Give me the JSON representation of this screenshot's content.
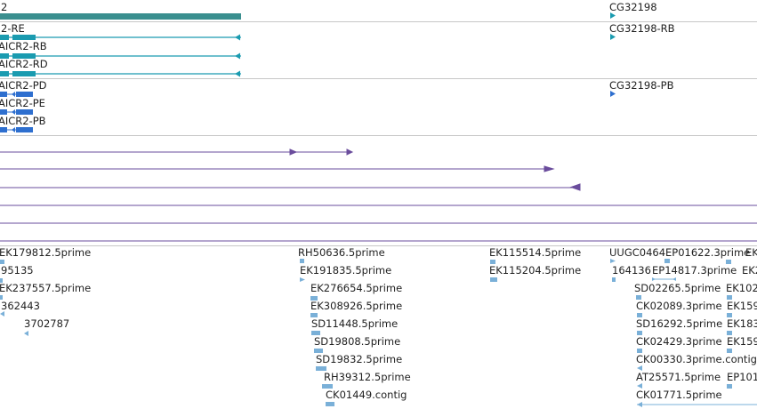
{
  "colors": {
    "gene": "#3a8f8f",
    "transcript": "#1a9bb0",
    "protein": "#2e6fcf",
    "alignment": "#6a4c9c",
    "est": "#7ab0d8",
    "separator": "#c7c7c7"
  },
  "gene_track": {
    "left_gene_label": "2",
    "right_gene_label": "CG32198"
  },
  "transcript_track": {
    "labels": [
      "2-RE",
      "AICR2-RB",
      "AICR2-RD"
    ],
    "right_label": "CG32198-RB"
  },
  "protein_track": {
    "labels": [
      "AICR2-PD",
      "AICR2-PE",
      "AICR2-PB"
    ],
    "right_label": "CG32198-PB"
  },
  "est_track": {
    "col1": [
      "EK179812.5prime",
      "95135",
      "EK237557.5prime",
      "362443",
      "3702787"
    ],
    "col2": [
      "RH50636.5prime",
      "EK191835.5prime",
      "EK276654.5prime",
      "EK308926.5prime",
      "SD11448.5prime",
      "SD19808.5prime",
      "SD19832.5prime",
      "RH39312.5prime",
      "CK01449.contig"
    ],
    "col3": [
      "EK115514.5prime",
      "EK115204.5prime"
    ],
    "col4_row0": [
      "UUGC0464",
      "EP01622.3prime",
      "EK"
    ],
    "col4_row1": [
      "164136",
      "EP14817.3prime",
      "EK2"
    ],
    "col4": [
      "SD02265.5prime",
      "CK02089.3prime",
      "SD16292.5prime",
      "CK02429.3prime",
      "CK00330.3prime.contig",
      "AT25571.5prime",
      "CK01771.5prime"
    ],
    "col5": [
      "EK102",
      "EK159",
      "EK183",
      "EK159",
      "EP101"
    ]
  }
}
